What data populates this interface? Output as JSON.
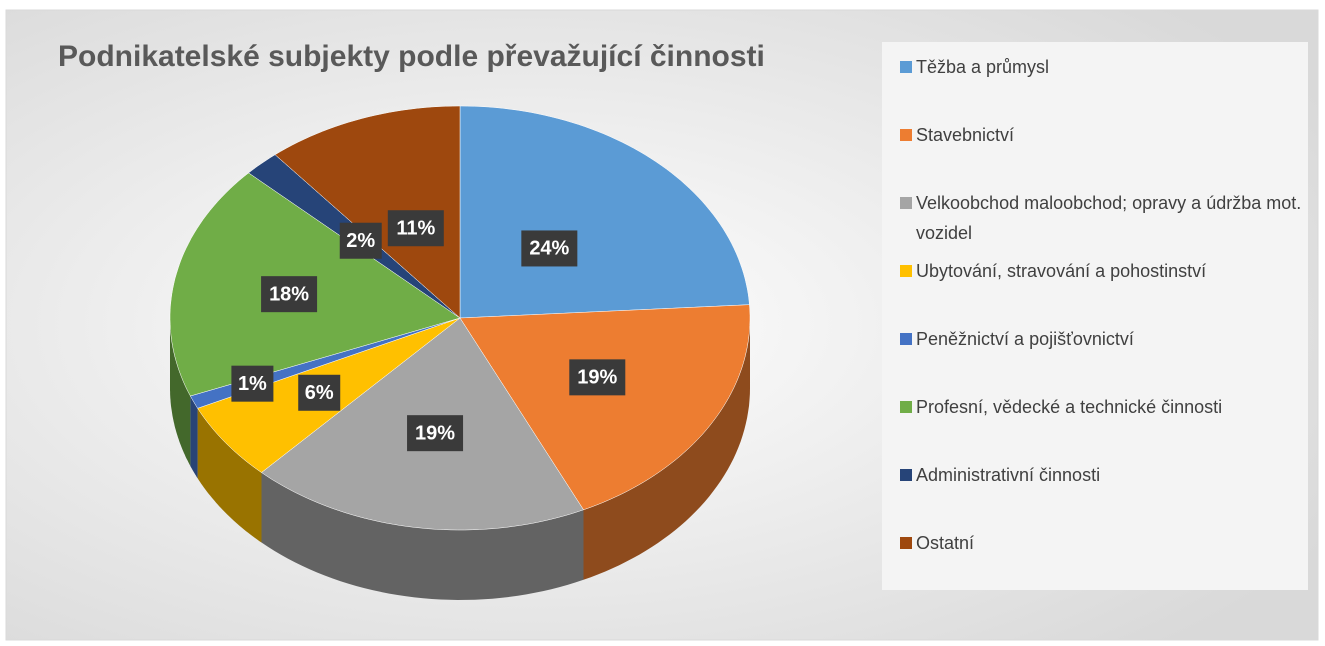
{
  "chart_data": {
    "type": "pie",
    "title": "Podnikatelské subjekty podle převažující činnosti",
    "categories": [
      "Těžba a průmysl",
      "Stavebnictví",
      "Velkoobchod maloobchod; opravy a údržba mot. vozidel",
      "Ubytování, stravování a pohostinství",
      "Peněžnictví a pojišťovnictví",
      "Profesní, vědecké a technické činnosti",
      "Administrativní činnosti",
      "Ostatní"
    ],
    "values": [
      24,
      19,
      19,
      6,
      1,
      18,
      2,
      11
    ],
    "value_labels": [
      "24%",
      "19%",
      "19%",
      "6%",
      "1%",
      "18%",
      "2%",
      "11%"
    ],
    "colors": [
      "#5b9bd5",
      "#ed7d31",
      "#a5a5a5",
      "#ffc000",
      "#4472c4",
      "#70ad47",
      "#264478",
      "#9e480e"
    ],
    "legend": "right"
  }
}
